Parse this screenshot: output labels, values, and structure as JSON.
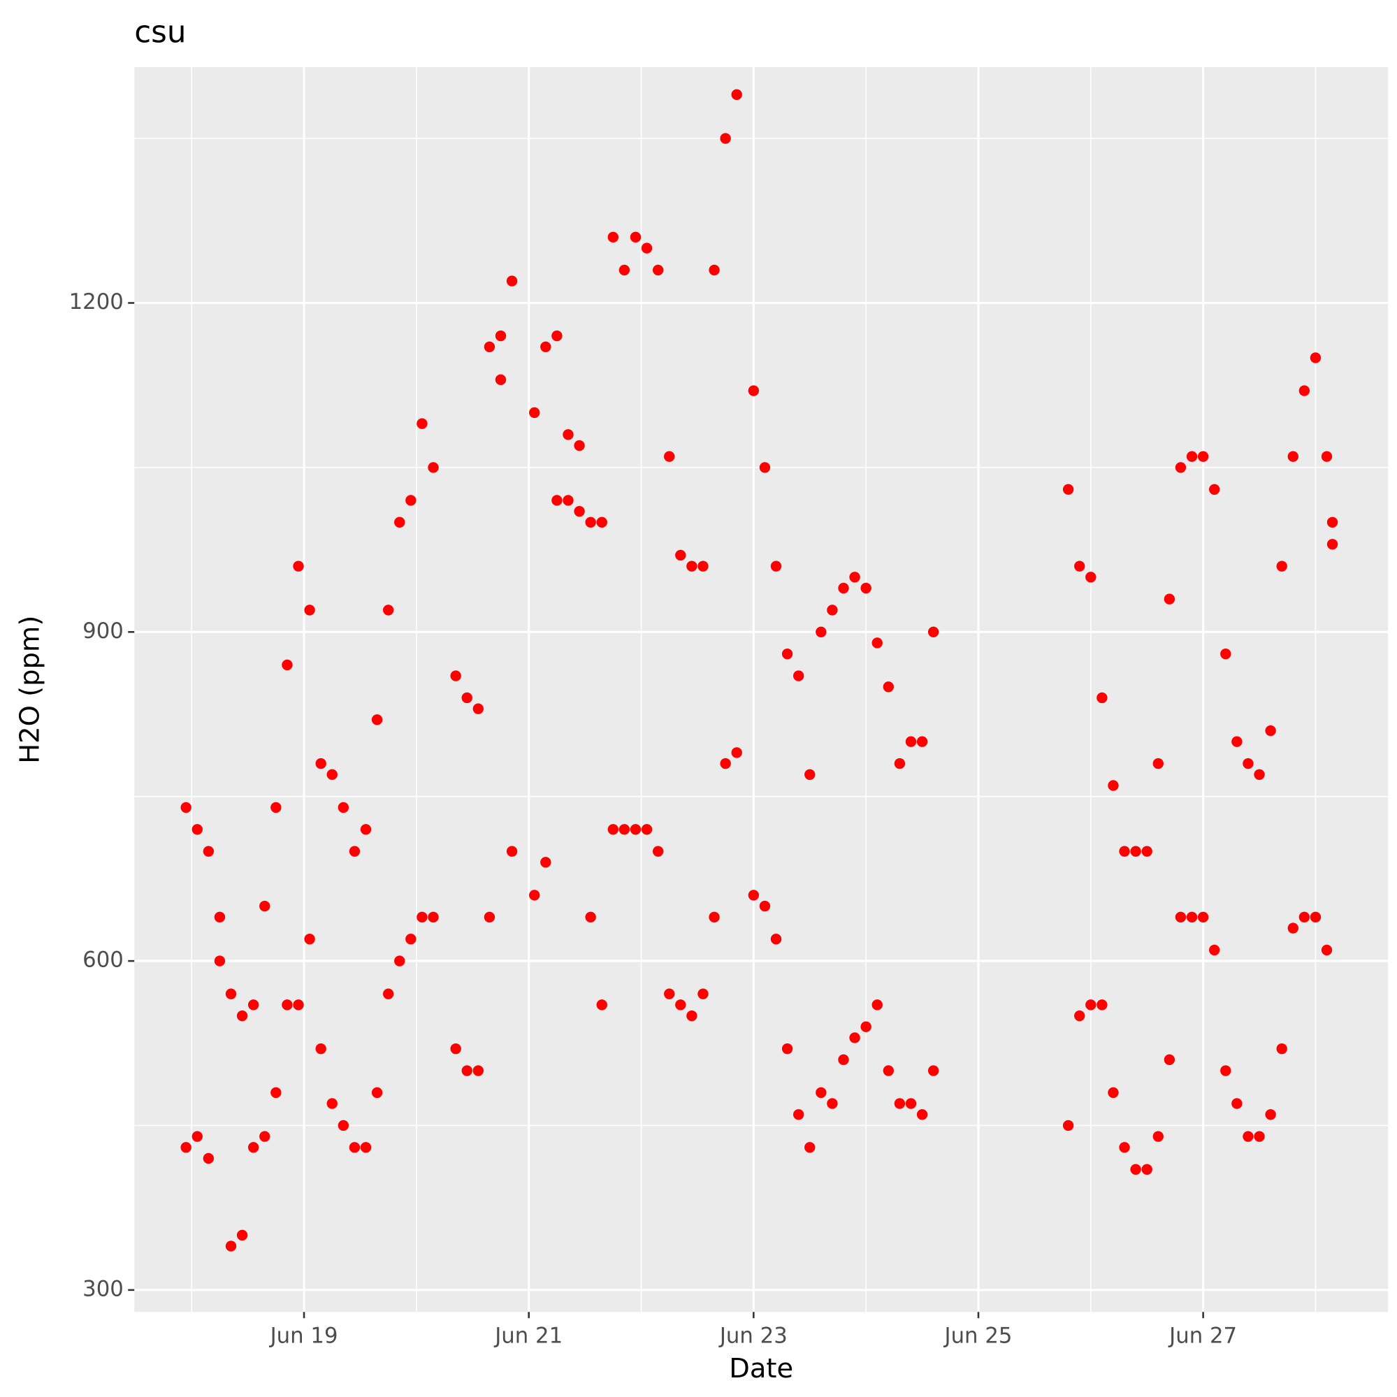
{
  "chart_data": {
    "type": "scatter",
    "title": "csu",
    "xlabel": "Date",
    "ylabel": "H2O (ppm)",
    "xlim": [
      17.49,
      28.645
    ],
    "ylim": [
      280,
      1415
    ],
    "xticks": [
      {
        "value": 19,
        "label": "Jun 19"
      },
      {
        "value": 21,
        "label": "Jun 21"
      },
      {
        "value": 23,
        "label": "Jun 23"
      },
      {
        "value": 25,
        "label": "Jun 25"
      },
      {
        "value": 27,
        "label": "Jun 27"
      }
    ],
    "yticks": [
      300,
      600,
      900,
      1200
    ],
    "grid": true,
    "series": [
      {
        "name": "H2O",
        "color": "#ff0000",
        "x": [
          17.95,
          17.95,
          18.05,
          18.05,
          18.15,
          18.15,
          18.25,
          18.25,
          18.35,
          18.35,
          18.45,
          18.45,
          18.55,
          18.55,
          18.65,
          18.65,
          18.75,
          18.75,
          18.85,
          18.85,
          18.95,
          18.95,
          19.05,
          19.05,
          19.15,
          19.15,
          19.25,
          19.25,
          19.35,
          19.35,
          19.45,
          19.45,
          19.55,
          19.55,
          19.65,
          19.65,
          19.75,
          19.75,
          19.85,
          19.85,
          19.95,
          19.95,
          20.05,
          20.05,
          20.15,
          20.15,
          20.35,
          20.35,
          20.45,
          20.45,
          20.55,
          20.55,
          20.65,
          20.65,
          20.75,
          20.75,
          20.85,
          20.85,
          21.05,
          21.05,
          21.15,
          21.15,
          21.25,
          21.25,
          21.35,
          21.35,
          21.45,
          21.45,
          21.55,
          21.55,
          21.65,
          21.65,
          21.75,
          21.75,
          21.85,
          21.85,
          21.95,
          21.95,
          22.05,
          22.05,
          22.15,
          22.15,
          22.25,
          22.25,
          22.35,
          22.35,
          22.45,
          22.45,
          22.55,
          22.55,
          22.65,
          22.65,
          22.75,
          22.75,
          22.85,
          22.85,
          23.0,
          23.0,
          23.1,
          23.1,
          23.2,
          23.2,
          23.3,
          23.3,
          23.4,
          23.4,
          23.5,
          23.5,
          23.6,
          23.6,
          23.7,
          23.7,
          23.8,
          23.8,
          23.9,
          23.9,
          24.0,
          24.0,
          24.1,
          24.1,
          24.2,
          24.2,
          24.3,
          24.3,
          24.4,
          24.4,
          24.5,
          24.5,
          24.6,
          24.6,
          25.8,
          25.8,
          25.9,
          25.9,
          26.0,
          26.0,
          26.1,
          26.1,
          26.2,
          26.2,
          26.3,
          26.3,
          26.4,
          26.4,
          26.5,
          26.5,
          26.6,
          26.6,
          26.7,
          26.7,
          26.8,
          26.8,
          26.9,
          26.9,
          27.0,
          27.0,
          27.1,
          27.1,
          27.2,
          27.2,
          27.3,
          27.3,
          27.4,
          27.4,
          27.5,
          27.5,
          27.6,
          27.6,
          27.7,
          27.7,
          27.8,
          27.8,
          27.9,
          27.9,
          28.0,
          28.0,
          28.1,
          28.1,
          28.15,
          28.15
        ],
        "values": [
          740,
          430,
          720,
          440,
          700,
          420,
          640,
          600,
          570,
          340,
          550,
          350,
          560,
          430,
          650,
          440,
          740,
          480,
          870,
          560,
          960,
          560,
          920,
          620,
          780,
          520,
          770,
          470,
          740,
          450,
          700,
          430,
          720,
          430,
          820,
          480,
          920,
          570,
          1000,
          600,
          1020,
          620,
          1090,
          640,
          1050,
          640,
          860,
          520,
          840,
          500,
          830,
          500,
          1160,
          640,
          1170,
          1130,
          1220,
          700,
          1100,
          660,
          1160,
          690,
          1170,
          1020,
          1080,
          1020,
          1070,
          1010,
          1000,
          640,
          1000,
          560,
          1260,
          720,
          1230,
          720,
          1260,
          720,
          1250,
          720,
          1230,
          700,
          1060,
          570,
          970,
          560,
          960,
          550,
          960,
          570,
          1230,
          640,
          1350,
          780,
          1390,
          790,
          1120,
          660,
          1050,
          650,
          960,
          620,
          880,
          520,
          860,
          460,
          770,
          430,
          900,
          480,
          920,
          470,
          940,
          510,
          950,
          530,
          940,
          540,
          890,
          560,
          850,
          500,
          780,
          470,
          800,
          470,
          800,
          460,
          900,
          500,
          1030,
          450,
          960,
          550,
          950,
          560,
          840,
          560,
          760,
          480,
          700,
          430,
          700,
          410,
          700,
          410,
          780,
          440,
          930,
          510,
          1050,
          640,
          1060,
          640,
          1060,
          640,
          1030,
          610,
          880,
          500,
          800,
          470,
          780,
          440,
          770,
          440,
          810,
          460,
          960,
          520,
          1060,
          630,
          1120,
          640,
          1150,
          640,
          1060,
          610,
          1000,
          980
        ]
      }
    ]
  }
}
